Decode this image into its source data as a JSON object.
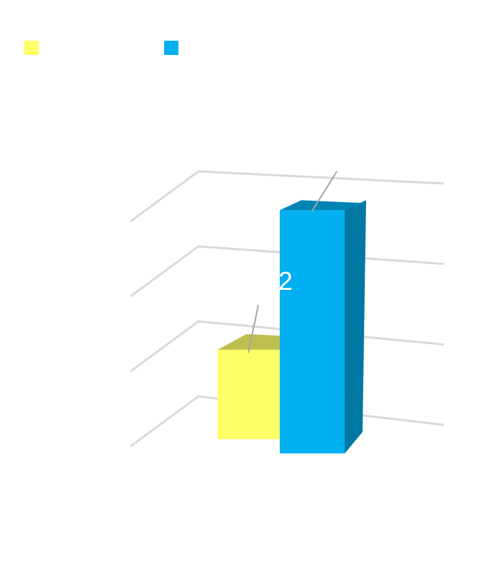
{
  "chart_data": {
    "type": "bar3d",
    "categories": [
      null
    ],
    "series": [
      {
        "color": "#ffff66",
        "values": [
          0.9
        ]
      },
      {
        "color": "#00b0f0",
        "values": [
          2.6
        ]
      }
    ],
    "annotations": [
      "2"
    ],
    "ylim": [
      0,
      3
    ],
    "yticks": [
      0,
      1,
      2,
      3
    ],
    "grid": true
  }
}
